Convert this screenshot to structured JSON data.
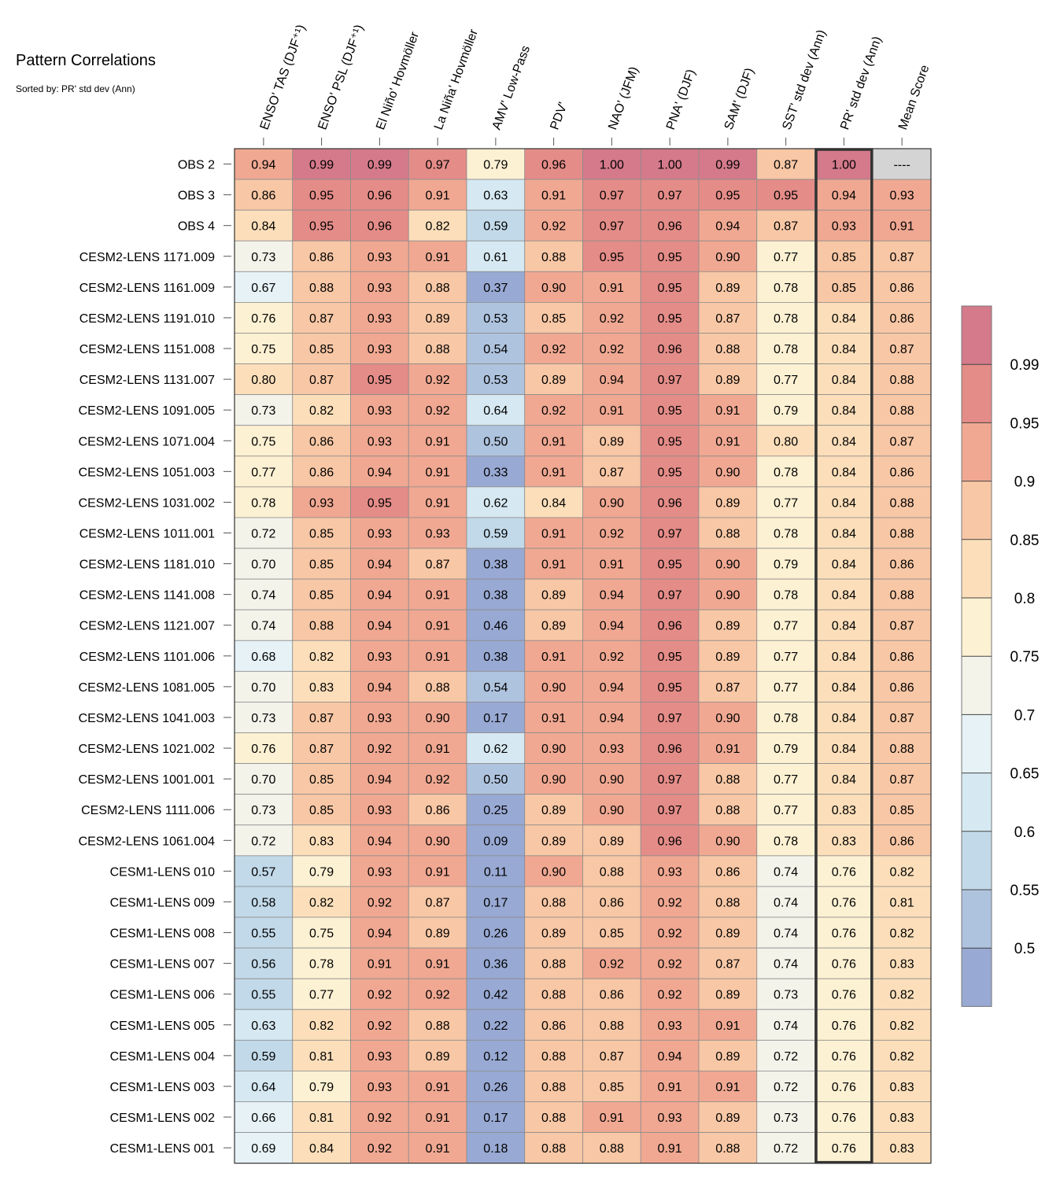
{
  "chart_data": {
    "type": "heatmap",
    "title": "Pattern Correlations",
    "subtitle": "Sorted by: PR' std dev (Ann)",
    "highlighted_column": "PR' std dev (Ann)",
    "columns": [
      "ENSO' TAS (DJF⁺¹)",
      "ENSO' PSL (DJF⁺¹)",
      "El Niño' Hovmöller",
      "La Niña' Hovmöller",
      "AMV' Low-Pass",
      "PDV'",
      "NAO' (JFM)",
      "PNA' (DJF)",
      "SAM' (DJF)",
      "SST' std dev (Ann)",
      "PR' std dev (Ann)",
      "Mean Score"
    ],
    "rows": [
      {
        "name": "OBS 2",
        "values": [
          "0.94",
          "0.99",
          "0.99",
          "0.97",
          "0.79",
          "0.96",
          "1.00",
          "1.00",
          "0.99",
          "0.87",
          "1.00",
          "----"
        ]
      },
      {
        "name": "OBS 3",
        "values": [
          "0.86",
          "0.95",
          "0.96",
          "0.91",
          "0.63",
          "0.91",
          "0.97",
          "0.97",
          "0.95",
          "0.95",
          "0.94",
          "0.93"
        ]
      },
      {
        "name": "OBS 4",
        "values": [
          "0.84",
          "0.95",
          "0.96",
          "0.82",
          "0.59",
          "0.92",
          "0.97",
          "0.96",
          "0.94",
          "0.87",
          "0.93",
          "0.91"
        ]
      },
      {
        "name": "CESM2-LENS 1171.009",
        "values": [
          "0.73",
          "0.86",
          "0.93",
          "0.91",
          "0.61",
          "0.88",
          "0.95",
          "0.95",
          "0.90",
          "0.77",
          "0.85",
          "0.87"
        ]
      },
      {
        "name": "CESM2-LENS 1161.009",
        "values": [
          "0.67",
          "0.88",
          "0.93",
          "0.88",
          "0.37",
          "0.90",
          "0.91",
          "0.95",
          "0.89",
          "0.78",
          "0.85",
          "0.86"
        ]
      },
      {
        "name": "CESM2-LENS 1191.010",
        "values": [
          "0.76",
          "0.87",
          "0.93",
          "0.89",
          "0.53",
          "0.85",
          "0.92",
          "0.95",
          "0.87",
          "0.78",
          "0.84",
          "0.86"
        ]
      },
      {
        "name": "CESM2-LENS 1151.008",
        "values": [
          "0.75",
          "0.85",
          "0.93",
          "0.88",
          "0.54",
          "0.92",
          "0.92",
          "0.96",
          "0.88",
          "0.78",
          "0.84",
          "0.87"
        ]
      },
      {
        "name": "CESM2-LENS 1131.007",
        "values": [
          "0.80",
          "0.87",
          "0.95",
          "0.92",
          "0.53",
          "0.89",
          "0.94",
          "0.97",
          "0.89",
          "0.77",
          "0.84",
          "0.88"
        ]
      },
      {
        "name": "CESM2-LENS 1091.005",
        "values": [
          "0.73",
          "0.82",
          "0.93",
          "0.92",
          "0.64",
          "0.92",
          "0.91",
          "0.95",
          "0.91",
          "0.79",
          "0.84",
          "0.88"
        ]
      },
      {
        "name": "CESM2-LENS 1071.004",
        "values": [
          "0.75",
          "0.86",
          "0.93",
          "0.91",
          "0.50",
          "0.91",
          "0.89",
          "0.95",
          "0.91",
          "0.80",
          "0.84",
          "0.87"
        ]
      },
      {
        "name": "CESM2-LENS 1051.003",
        "values": [
          "0.77",
          "0.86",
          "0.94",
          "0.91",
          "0.33",
          "0.91",
          "0.87",
          "0.95",
          "0.90",
          "0.78",
          "0.84",
          "0.86"
        ]
      },
      {
        "name": "CESM2-LENS 1031.002",
        "values": [
          "0.78",
          "0.93",
          "0.95",
          "0.91",
          "0.62",
          "0.84",
          "0.90",
          "0.96",
          "0.89",
          "0.77",
          "0.84",
          "0.88"
        ]
      },
      {
        "name": "CESM2-LENS 1011.001",
        "values": [
          "0.72",
          "0.85",
          "0.93",
          "0.93",
          "0.59",
          "0.91",
          "0.92",
          "0.97",
          "0.88",
          "0.78",
          "0.84",
          "0.88"
        ]
      },
      {
        "name": "CESM2-LENS 1181.010",
        "values": [
          "0.70",
          "0.85",
          "0.94",
          "0.87",
          "0.38",
          "0.91",
          "0.91",
          "0.95",
          "0.90",
          "0.79",
          "0.84",
          "0.86"
        ]
      },
      {
        "name": "CESM2-LENS 1141.008",
        "values": [
          "0.74",
          "0.85",
          "0.94",
          "0.91",
          "0.38",
          "0.89",
          "0.94",
          "0.97",
          "0.90",
          "0.78",
          "0.84",
          "0.88"
        ]
      },
      {
        "name": "CESM2-LENS 1121.007",
        "values": [
          "0.74",
          "0.88",
          "0.94",
          "0.91",
          "0.46",
          "0.89",
          "0.94",
          "0.96",
          "0.89",
          "0.77",
          "0.84",
          "0.87"
        ]
      },
      {
        "name": "CESM2-LENS 1101.006",
        "values": [
          "0.68",
          "0.82",
          "0.93",
          "0.91",
          "0.38",
          "0.91",
          "0.92",
          "0.95",
          "0.89",
          "0.77",
          "0.84",
          "0.86"
        ]
      },
      {
        "name": "CESM2-LENS 1081.005",
        "values": [
          "0.70",
          "0.83",
          "0.94",
          "0.88",
          "0.54",
          "0.90",
          "0.94",
          "0.95",
          "0.87",
          "0.77",
          "0.84",
          "0.86"
        ]
      },
      {
        "name": "CESM2-LENS 1041.003",
        "values": [
          "0.73",
          "0.87",
          "0.93",
          "0.90",
          "0.17",
          "0.91",
          "0.94",
          "0.97",
          "0.90",
          "0.78",
          "0.84",
          "0.87"
        ]
      },
      {
        "name": "CESM2-LENS 1021.002",
        "values": [
          "0.76",
          "0.87",
          "0.92",
          "0.91",
          "0.62",
          "0.90",
          "0.93",
          "0.96",
          "0.91",
          "0.79",
          "0.84",
          "0.88"
        ]
      },
      {
        "name": "CESM2-LENS 1001.001",
        "values": [
          "0.70",
          "0.85",
          "0.94",
          "0.92",
          "0.50",
          "0.90",
          "0.90",
          "0.97",
          "0.88",
          "0.77",
          "0.84",
          "0.87"
        ]
      },
      {
        "name": "CESM2-LENS 1111.006",
        "values": [
          "0.73",
          "0.85",
          "0.93",
          "0.86",
          "0.25",
          "0.89",
          "0.90",
          "0.97",
          "0.88",
          "0.77",
          "0.83",
          "0.85"
        ]
      },
      {
        "name": "CESM2-LENS 1061.004",
        "values": [
          "0.72",
          "0.83",
          "0.94",
          "0.90",
          "0.09",
          "0.89",
          "0.89",
          "0.96",
          "0.90",
          "0.78",
          "0.83",
          "0.86"
        ]
      },
      {
        "name": "CESM1-LENS 010",
        "values": [
          "0.57",
          "0.79",
          "0.93",
          "0.91",
          "0.11",
          "0.90",
          "0.88",
          "0.93",
          "0.86",
          "0.74",
          "0.76",
          "0.82"
        ]
      },
      {
        "name": "CESM1-LENS 009",
        "values": [
          "0.58",
          "0.82",
          "0.92",
          "0.87",
          "0.17",
          "0.88",
          "0.86",
          "0.92",
          "0.88",
          "0.74",
          "0.76",
          "0.81"
        ]
      },
      {
        "name": "CESM1-LENS 008",
        "values": [
          "0.55",
          "0.75",
          "0.94",
          "0.89",
          "0.26",
          "0.89",
          "0.85",
          "0.92",
          "0.89",
          "0.74",
          "0.76",
          "0.82"
        ]
      },
      {
        "name": "CESM1-LENS 007",
        "values": [
          "0.56",
          "0.78",
          "0.91",
          "0.91",
          "0.36",
          "0.88",
          "0.92",
          "0.92",
          "0.87",
          "0.74",
          "0.76",
          "0.83"
        ]
      },
      {
        "name": "CESM1-LENS 006",
        "values": [
          "0.55",
          "0.77",
          "0.92",
          "0.92",
          "0.42",
          "0.88",
          "0.86",
          "0.92",
          "0.89",
          "0.73",
          "0.76",
          "0.82"
        ]
      },
      {
        "name": "CESM1-LENS 005",
        "values": [
          "0.63",
          "0.82",
          "0.92",
          "0.88",
          "0.22",
          "0.86",
          "0.88",
          "0.93",
          "0.91",
          "0.74",
          "0.76",
          "0.82"
        ]
      },
      {
        "name": "CESM1-LENS 004",
        "values": [
          "0.59",
          "0.81",
          "0.93",
          "0.89",
          "0.12",
          "0.88",
          "0.87",
          "0.94",
          "0.89",
          "0.72",
          "0.76",
          "0.82"
        ]
      },
      {
        "name": "CESM1-LENS 003",
        "values": [
          "0.64",
          "0.79",
          "0.93",
          "0.91",
          "0.26",
          "0.88",
          "0.85",
          "0.91",
          "0.91",
          "0.72",
          "0.76",
          "0.83"
        ]
      },
      {
        "name": "CESM1-LENS 002",
        "values": [
          "0.66",
          "0.81",
          "0.92",
          "0.91",
          "0.17",
          "0.88",
          "0.91",
          "0.93",
          "0.89",
          "0.73",
          "0.76",
          "0.83"
        ]
      },
      {
        "name": "CESM1-LENS 001",
        "values": [
          "0.69",
          "0.84",
          "0.92",
          "0.91",
          "0.18",
          "0.88",
          "0.88",
          "0.91",
          "0.88",
          "0.72",
          "0.76",
          "0.83"
        ]
      }
    ],
    "colorbar": {
      "levels": [
        "0.5",
        "0.55",
        "0.6",
        "0.65",
        "0.7",
        "0.75",
        "0.8",
        "0.85",
        "0.9",
        "0.95",
        "0.99"
      ],
      "boundaries": [
        0.5,
        0.55,
        0.6,
        0.65,
        0.7,
        0.75,
        0.8,
        0.85,
        0.9,
        0.95,
        0.99
      ],
      "colors": [
        "#98a9d3",
        "#aec3de",
        "#c2d9e9",
        "#d6e9f2",
        "#e6f2f6",
        "#f3f3ea",
        "#fdf1d3",
        "#fcdfba",
        "#f8c7a5",
        "#f0a892",
        "#e48c88",
        "#d47a8b"
      ],
      "missing_color": "#d4d4d4"
    }
  }
}
